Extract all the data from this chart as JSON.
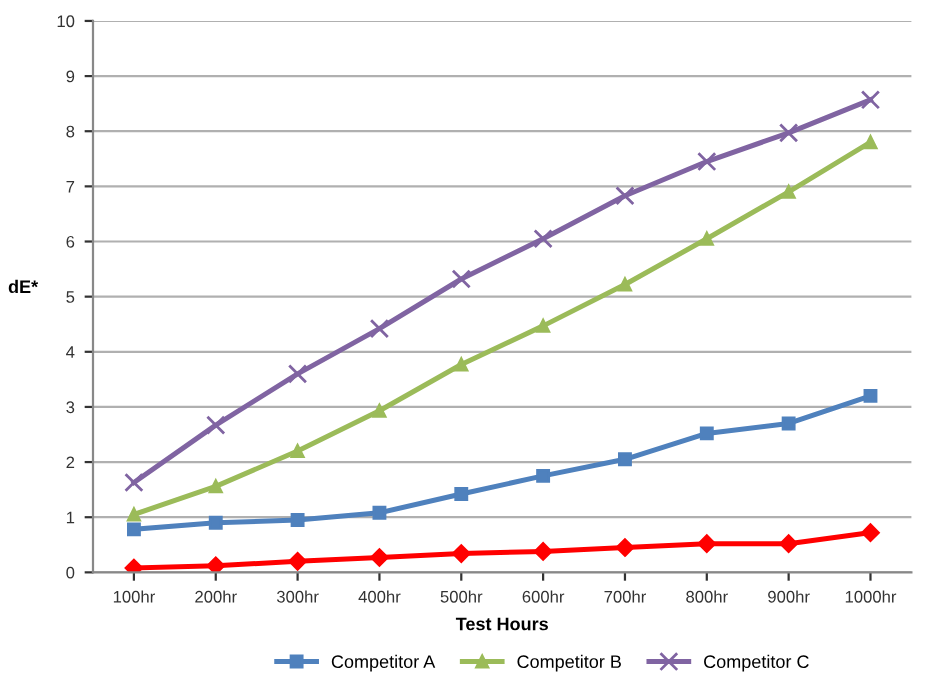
{
  "chart_data": {
    "type": "line",
    "xlabel": "Test Hours",
    "ylabel": "dE*",
    "categories": [
      "100hr",
      "200hr",
      "300hr",
      "400hr",
      "500hr",
      "600hr",
      "700hr",
      "800hr",
      "900hr",
      "1000hr"
    ],
    "series": [
      {
        "color": "#ff0000",
        "marker": "diamond",
        "values": [
          0.08,
          0.12,
          0.2,
          0.27,
          0.34,
          0.38,
          0.45,
          0.52,
          0.52,
          0.72
        ]
      },
      {
        "name": "Competitor A",
        "color": "#4f81bd",
        "marker": "square",
        "values": [
          0.78,
          0.9,
          0.95,
          1.08,
          1.42,
          1.75,
          2.05,
          2.52,
          2.7,
          3.2
        ]
      },
      {
        "name": "Competitor B",
        "color": "#9bbb59",
        "marker": "triangle",
        "values": [
          1.05,
          1.56,
          2.2,
          2.93,
          3.77,
          4.47,
          5.22,
          6.05,
          6.9,
          7.8
        ]
      },
      {
        "name": "Competitor C",
        "color": "#8064a2",
        "marker": "cross",
        "values": [
          1.63,
          2.67,
          3.6,
          4.42,
          5.32,
          6.05,
          6.83,
          7.45,
          7.97,
          8.57
        ]
      }
    ],
    "ylim": [
      0,
      10
    ],
    "yticks": [
      0,
      1,
      2,
      3,
      4,
      5,
      6,
      7,
      8,
      9,
      10
    ],
    "grid": "y",
    "legend": "bottom"
  }
}
